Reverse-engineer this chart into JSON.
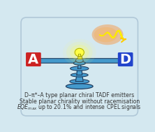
{
  "bg_color": "#d4e8f0",
  "title_lines": [
    "D–π*–A type planar chiral TADF emitters",
    "Stable planar chirality without racemisation",
    "EQE up to 20.1% and intense CPEL signals"
  ],
  "A_label": "A",
  "D_label": "D",
  "A_color": "#cc2222",
  "D_color": "#2244cc",
  "balance_color": "#4499cc",
  "text_color": "#333333",
  "figsize": [
    2.22,
    1.89
  ],
  "dpi": 100
}
